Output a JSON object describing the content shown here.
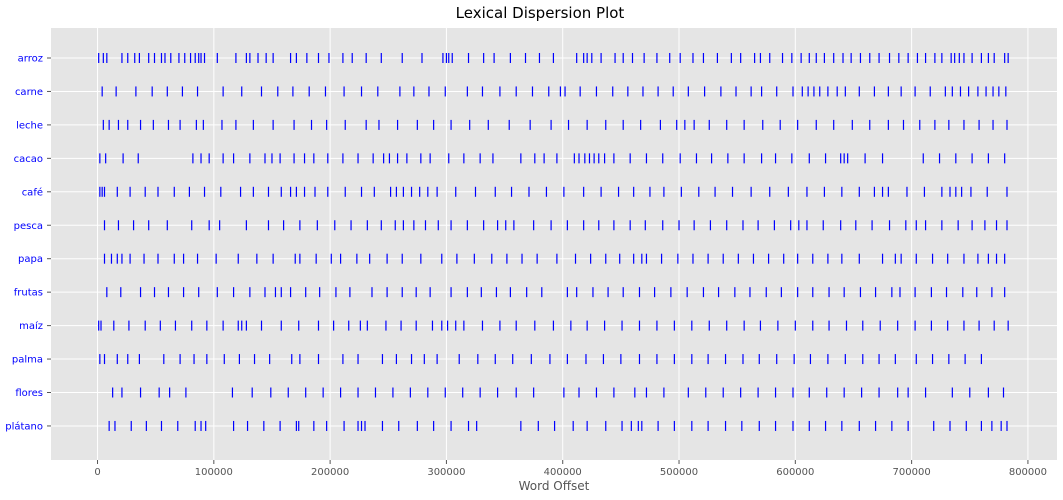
{
  "chart_data": {
    "type": "scatter",
    "title": "Lexical Dispersion Plot",
    "xlabel": "Word Offset",
    "ylabel": "",
    "xlim": [
      -40000,
      825000
    ],
    "xticks": [
      0,
      100000,
      200000,
      300000,
      400000,
      500000,
      600000,
      700000,
      800000
    ],
    "grid": true,
    "marker": "|",
    "marker_color": "#0000ff",
    "categories": [
      "arroz",
      "carne",
      "leche",
      "cacao",
      "café",
      "pesca",
      "papa",
      "frutas",
      "maíz",
      "palma",
      "flores",
      "plátano"
    ],
    "series": [
      {
        "values": [
          1000,
          5000,
          8000,
          21000,
          26000,
          32000,
          36000,
          44000,
          49000,
          55000,
          58000,
          63000,
          70000,
          75000,
          80000,
          84000,
          87000,
          89000,
          92000,
          103000,
          119000,
          128000,
          131000,
          138000,
          145000,
          151000,
          166000,
          171000,
          180000,
          190000,
          199000,
          211000,
          219000,
          231000,
          244000,
          262000,
          279000,
          297000,
          300000,
          302000,
          305000,
          319000,
          332000,
          341000,
          355000,
          368000,
          380000,
          392000,
          412000,
          418000,
          421000,
          425000,
          433000,
          445000,
          452000,
          460000,
          470000,
          481000,
          492000,
          501000,
          512000,
          521000,
          533000,
          545000,
          553000,
          565000,
          570000,
          578000,
          589000,
          597000,
          605000,
          612000,
          618000,
          625000,
          633000,
          641000,
          648000,
          656000,
          664000,
          672000,
          681000,
          689000,
          697000,
          705000,
          712000,
          720000,
          726000,
          734000,
          737000,
          741000,
          745000,
          752000,
          760000,
          766000,
          771000,
          780000,
          783000
        ]
      },
      {
        "values": [
          4000,
          16000,
          33000,
          47000,
          60000,
          73000,
          86000,
          108000,
          124000,
          141000,
          155000,
          168000,
          182000,
          196000,
          212000,
          227000,
          241000,
          260000,
          272000,
          285000,
          299000,
          318000,
          331000,
          346000,
          360000,
          374000,
          388000,
          398000,
          402000,
          415000,
          429000,
          443000,
          456000,
          469000,
          482000,
          495000,
          508000,
          522000,
          536000,
          549000,
          562000,
          571000,
          584000,
          598000,
          606000,
          611000,
          616000,
          621000,
          628000,
          636000,
          643000,
          655000,
          668000,
          680000,
          691000,
          703000,
          716000,
          729000,
          735000,
          742000,
          749000,
          757000,
          764000,
          770000,
          775000,
          781000
        ]
      },
      {
        "values": [
          5000,
          10000,
          18000,
          26000,
          37000,
          48000,
          61000,
          71000,
          85000,
          91000,
          107000,
          119000,
          134000,
          151000,
          169000,
          184000,
          197000,
          213000,
          231000,
          242000,
          258000,
          275000,
          289000,
          304000,
          320000,
          336000,
          354000,
          372000,
          390000,
          405000,
          421000,
          437000,
          452000,
          467000,
          484000,
          498000,
          505000,
          513000,
          526000,
          541000,
          556000,
          572000,
          587000,
          602000,
          618000,
          633000,
          649000,
          664000,
          680000,
          693000,
          707000,
          720000,
          732000,
          745000,
          758000,
          770000,
          782000
        ]
      },
      {
        "values": [
          2000,
          7000,
          22000,
          35000,
          82000,
          89000,
          96000,
          108000,
          117000,
          131000,
          144000,
          150000,
          157000,
          169000,
          178000,
          186000,
          198000,
          211000,
          224000,
          237000,
          246000,
          251000,
          258000,
          266000,
          278000,
          286000,
          302000,
          315000,
          329000,
          340000,
          364000,
          376000,
          384000,
          395000,
          410000,
          414000,
          419000,
          423000,
          427000,
          431000,
          436000,
          444000,
          458000,
          472000,
          486000,
          501000,
          515000,
          528000,
          542000,
          556000,
          571000,
          583000,
          597000,
          612000,
          626000,
          639000,
          642000,
          645000,
          660000,
          675000,
          710000,
          724000,
          738000,
          752000,
          766000,
          780000
        ]
      },
      {
        "values": [
          2000,
          4000,
          6000,
          17000,
          28000,
          41000,
          52000,
          66000,
          79000,
          92000,
          106000,
          123000,
          134000,
          147000,
          158000,
          166000,
          171000,
          178000,
          187000,
          198000,
          213000,
          227000,
          238000,
          252000,
          257000,
          263000,
          270000,
          277000,
          284000,
          292000,
          308000,
          325000,
          342000,
          356000,
          371000,
          386000,
          401000,
          418000,
          433000,
          448000,
          461000,
          475000,
          487000,
          502000,
          517000,
          531000,
          546000,
          562000,
          578000,
          594000,
          610000,
          625000,
          640000,
          655000,
          668000,
          675000,
          680000,
          696000,
          711000,
          726000,
          733000,
          738000,
          743000,
          751000,
          765000,
          782000
        ]
      },
      {
        "values": [
          6000,
          18000,
          31000,
          44000,
          60000,
          81000,
          96000,
          105000,
          128000,
          147000,
          160000,
          174000,
          189000,
          204000,
          218000,
          232000,
          244000,
          256000,
          263000,
          272000,
          282000,
          293000,
          304000,
          318000,
          332000,
          344000,
          351000,
          358000,
          375000,
          390000,
          404000,
          418000,
          431000,
          444000,
          458000,
          471000,
          486000,
          500000,
          513000,
          527000,
          541000,
          555000,
          568000,
          582000,
          596000,
          603000,
          610000,
          624000,
          639000,
          652000,
          666000,
          681000,
          695000,
          704000,
          712000,
          726000,
          740000,
          752000,
          763000,
          773000,
          782000
        ]
      },
      {
        "values": [
          6000,
          12000,
          17000,
          21000,
          28000,
          40000,
          52000,
          66000,
          74000,
          86000,
          102000,
          121000,
          137000,
          151000,
          170000,
          174000,
          188000,
          201000,
          209000,
          223000,
          234000,
          249000,
          262000,
          278000,
          296000,
          309000,
          324000,
          339000,
          352000,
          365000,
          378000,
          395000,
          411000,
          424000,
          437000,
          449000,
          461000,
          468000,
          472000,
          485000,
          499000,
          512000,
          525000,
          538000,
          551000,
          564000,
          577000,
          590000,
          602000,
          615000,
          628000,
          640000,
          655000,
          675000,
          686000,
          691000,
          704000,
          718000,
          731000,
          745000,
          757000,
          766000,
          773000,
          780000
        ]
      },
      {
        "values": [
          8000,
          20000,
          37000,
          49000,
          61000,
          74000,
          87000,
          103000,
          117000,
          131000,
          144000,
          153000,
          158000,
          166000,
          179000,
          191000,
          205000,
          217000,
          236000,
          249000,
          262000,
          274000,
          286000,
          304000,
          318000,
          330000,
          343000,
          355000,
          369000,
          382000,
          404000,
          412000,
          426000,
          439000,
          452000,
          466000,
          479000,
          493000,
          507000,
          521000,
          534000,
          548000,
          561000,
          575000,
          588000,
          602000,
          615000,
          629000,
          642000,
          656000,
          669000,
          683000,
          690000,
          703000,
          717000,
          730000,
          744000,
          756000,
          769000,
          780000
        ]
      },
      {
        "values": [
          1000,
          3000,
          14000,
          27000,
          41000,
          54000,
          67000,
          81000,
          94000,
          108000,
          121000,
          124000,
          128000,
          141000,
          158000,
          173000,
          190000,
          203000,
          216000,
          226000,
          232000,
          248000,
          261000,
          274000,
          288000,
          296000,
          301000,
          308000,
          315000,
          331000,
          346000,
          360000,
          376000,
          392000,
          407000,
          421000,
          436000,
          451000,
          466000,
          481000,
          496000,
          511000,
          526000,
          541000,
          556000,
          570000,
          585000,
          600000,
          615000,
          629000,
          644000,
          658000,
          673000,
          688000,
          703000,
          717000,
          731000,
          745000,
          758000,
          771000,
          783000
        ]
      },
      {
        "values": [
          2000,
          6000,
          17000,
          26000,
          36000,
          57000,
          71000,
          83000,
          94000,
          109000,
          122000,
          135000,
          148000,
          167000,
          174000,
          190000,
          211000,
          224000,
          245000,
          257000,
          270000,
          281000,
          292000,
          311000,
          327000,
          342000,
          357000,
          373000,
          389000,
          404000,
          420000,
          435000,
          450000,
          466000,
          481000,
          496000,
          511000,
          525000,
          540000,
          555000,
          569000,
          584000,
          599000,
          613000,
          628000,
          643000,
          658000,
          672000,
          686000,
          704000,
          718000,
          732000,
          746000,
          760000
        ]
      },
      {
        "values": [
          13000,
          21000,
          37000,
          53000,
          62000,
          76000,
          116000,
          133000,
          149000,
          164000,
          179000,
          194000,
          209000,
          224000,
          239000,
          254000,
          269000,
          284000,
          299000,
          314000,
          329000,
          344000,
          360000,
          375000,
          401000,
          414000,
          429000,
          444000,
          462000,
          472000,
          487000,
          508000,
          523000,
          538000,
          553000,
          568000,
          583000,
          598000,
          612000,
          627000,
          642000,
          657000,
          672000,
          688000,
          697000,
          712000,
          735000,
          750000,
          766000,
          779000
        ]
      },
      {
        "values": [
          10000,
          15000,
          29000,
          42000,
          55000,
          69000,
          84000,
          89000,
          93000,
          117000,
          129000,
          143000,
          157000,
          171000,
          173000,
          186000,
          197000,
          212000,
          224000,
          227000,
          230000,
          245000,
          259000,
          275000,
          289000,
          304000,
          319000,
          326000,
          364000,
          379000,
          393000,
          409000,
          421000,
          437000,
          451000,
          459000,
          465000,
          468000,
          482000,
          496000,
          511000,
          525000,
          540000,
          554000,
          569000,
          583000,
          598000,
          612000,
          626000,
          640000,
          655000,
          669000,
          683000,
          697000,
          719000,
          733000,
          747000,
          760000,
          769000,
          777000,
          782000
        ]
      }
    ]
  }
}
